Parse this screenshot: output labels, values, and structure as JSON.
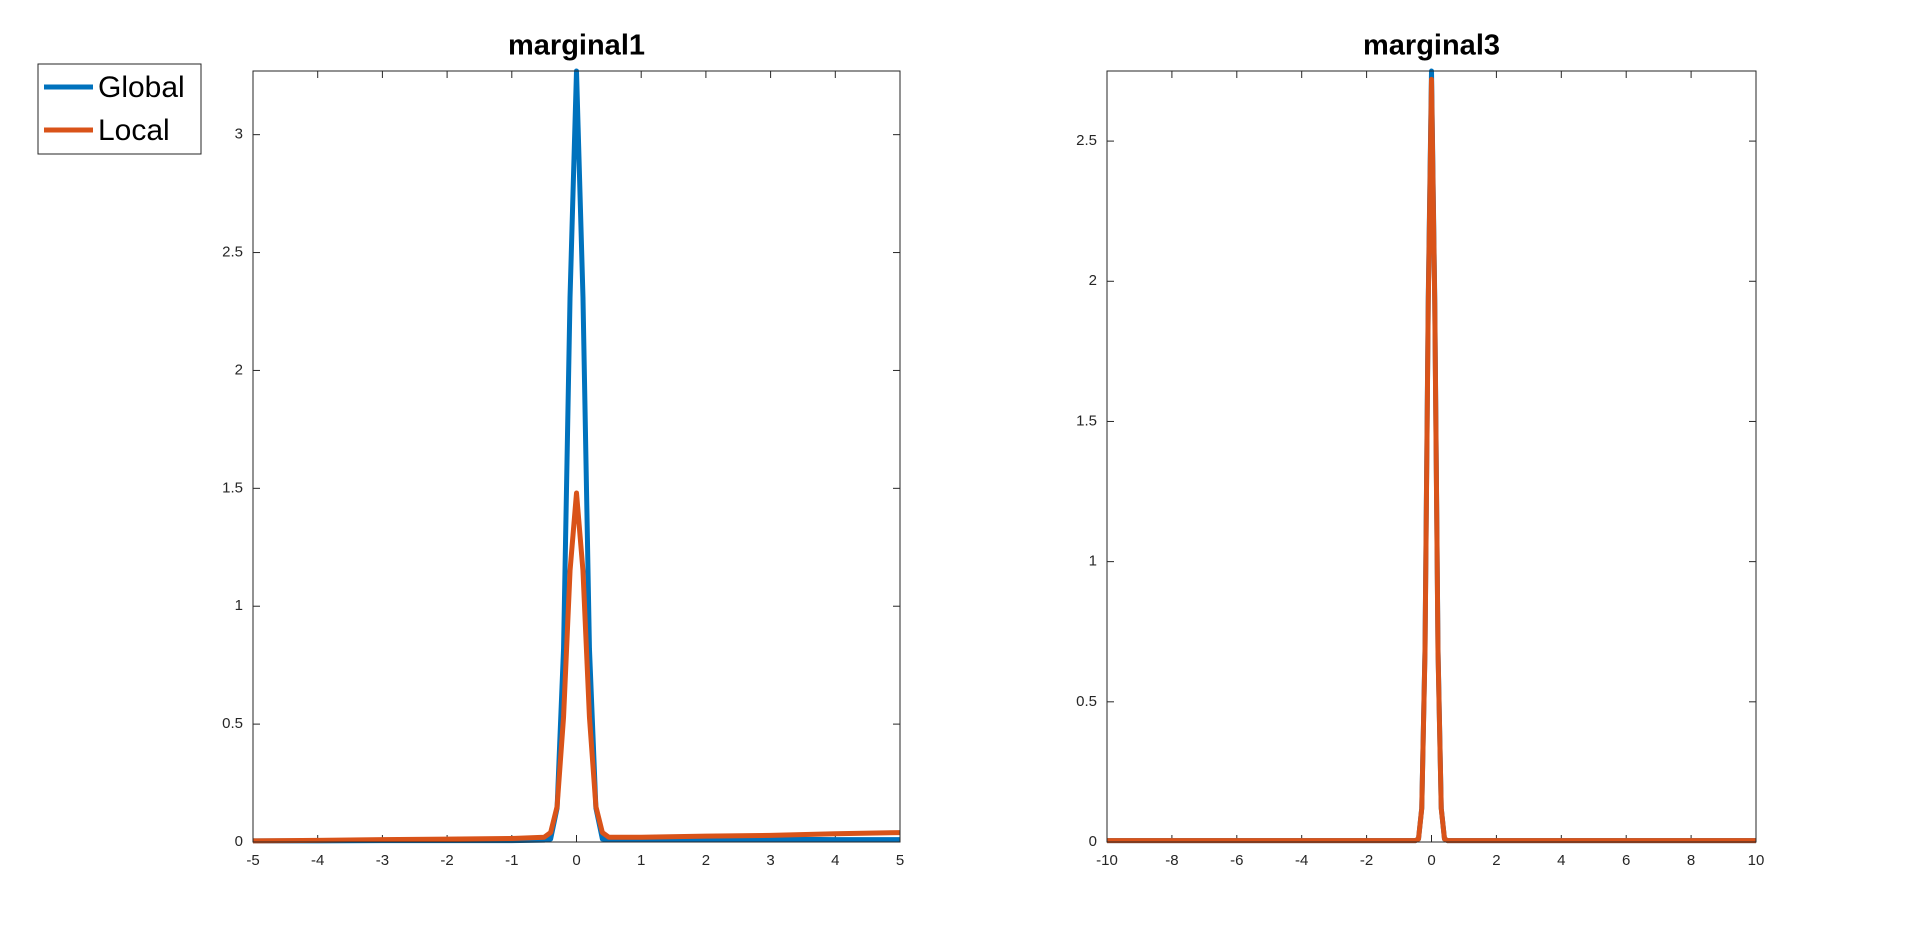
{
  "chart_data": [
    {
      "type": "line",
      "title": "marginal1",
      "x": [
        -5,
        -4,
        -3,
        -2,
        -1,
        -0.5,
        -0.4,
        -0.3,
        -0.2,
        -0.1,
        0,
        0.1,
        0.2,
        0.3,
        0.4,
        0.5,
        1,
        2,
        3,
        4,
        5
      ],
      "series": [
        {
          "name": "Global",
          "color": "#0072bd",
          "values": [
            0.005,
            0.005,
            0.006,
            0.006,
            0.006,
            0.008,
            0.013,
            0.144,
            0.82,
            2.31,
            3.27,
            2.31,
            0.82,
            0.144,
            0.013,
            0.01,
            0.01,
            0.01,
            0.012,
            0.01,
            0.01
          ]
        },
        {
          "name": "Local",
          "color": "#d95319",
          "values": [
            0.005,
            0.007,
            0.01,
            0.012,
            0.015,
            0.02,
            0.04,
            0.15,
            0.53,
            1.15,
            1.48,
            1.15,
            0.53,
            0.15,
            0.04,
            0.02,
            0.02,
            0.025,
            0.028,
            0.035,
            0.04
          ]
        }
      ],
      "xlim": [
        -5,
        5
      ],
      "ylim": [
        0,
        3.27
      ],
      "xticks": [
        -5,
        -4,
        -3,
        -2,
        -1,
        0,
        1,
        2,
        3,
        4,
        5
      ],
      "yticks": [
        0,
        0.5,
        1,
        1.5,
        2,
        2.5,
        3
      ],
      "legend": "left"
    },
    {
      "type": "line",
      "title": "marginal3",
      "x": [
        -10,
        -8,
        -6,
        -4,
        -2,
        -1,
        -0.5,
        -0.4,
        -0.3,
        -0.2,
        -0.1,
        0,
        0.1,
        0.2,
        0.3,
        0.4,
        0.5,
        1,
        2,
        4,
        6,
        8,
        10
      ],
      "series": [
        {
          "name": "Global",
          "color": "#0072bd",
          "values": [
            0.005,
            0.005,
            0.005,
            0.005,
            0.005,
            0.005,
            0.005,
            0.011,
            0.121,
            0.69,
            1.94,
            2.75,
            1.94,
            0.69,
            0.121,
            0.011,
            0.005,
            0.005,
            0.005,
            0.005,
            0.005,
            0.005,
            0.005
          ]
        },
        {
          "name": "Local",
          "color": "#d95319",
          "values": [
            0.005,
            0.005,
            0.005,
            0.005,
            0.005,
            0.005,
            0.005,
            0.011,
            0.12,
            0.68,
            1.92,
            2.72,
            1.92,
            0.68,
            0.12,
            0.011,
            0.005,
            0.005,
            0.005,
            0.005,
            0.005,
            0.005,
            0.005
          ]
        }
      ],
      "xlim": [
        -10,
        10
      ],
      "ylim": [
        0,
        2.75
      ],
      "xticks": [
        -10,
        -8,
        -6,
        -4,
        -2,
        0,
        2,
        4,
        6,
        8,
        10
      ],
      "yticks": [
        0,
        0.5,
        1,
        1.5,
        2,
        2.5
      ]
    }
  ]
}
